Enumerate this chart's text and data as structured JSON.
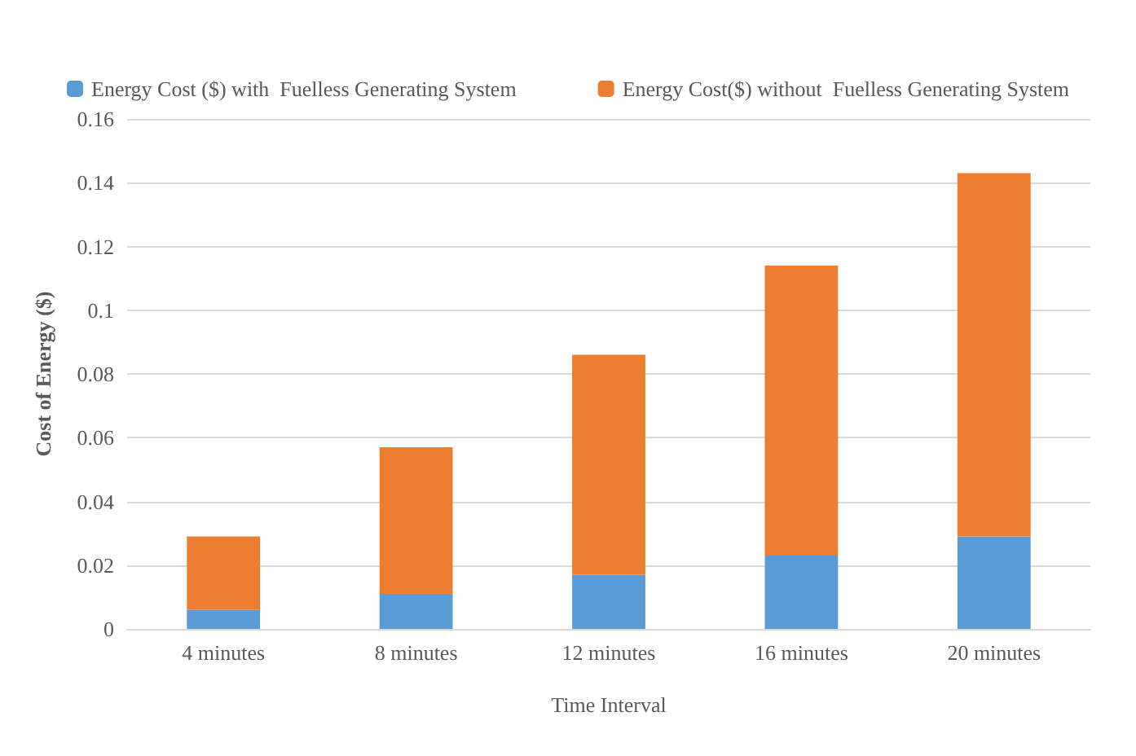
{
  "chart_data": {
    "type": "bar",
    "stacked": true,
    "xlabel": "Time Interval",
    "ylabel": "Cost of Energy ($)",
    "categories": [
      "4 minutes",
      "8 minutes",
      "12 minutes",
      "16 minutes",
      "20 minutes"
    ],
    "series": [
      {
        "name": "Energy Cost ($) with  Fuelless Generating System",
        "color": "#5b9bd5",
        "values": [
          0.006,
          0.011,
          0.017,
          0.023,
          0.029
        ]
      },
      {
        "name": "Energy Cost($) without  Fuelless Generating System",
        "color": "#ed7d31",
        "values": [
          0.023,
          0.046,
          0.069,
          0.091,
          0.114
        ]
      }
    ],
    "ylim": [
      0,
      0.16
    ],
    "yticks": [
      0,
      0.02,
      0.04,
      0.06,
      0.08,
      0.1,
      0.12,
      0.14,
      0.16
    ],
    "grid": "y",
    "legend": "top"
  }
}
